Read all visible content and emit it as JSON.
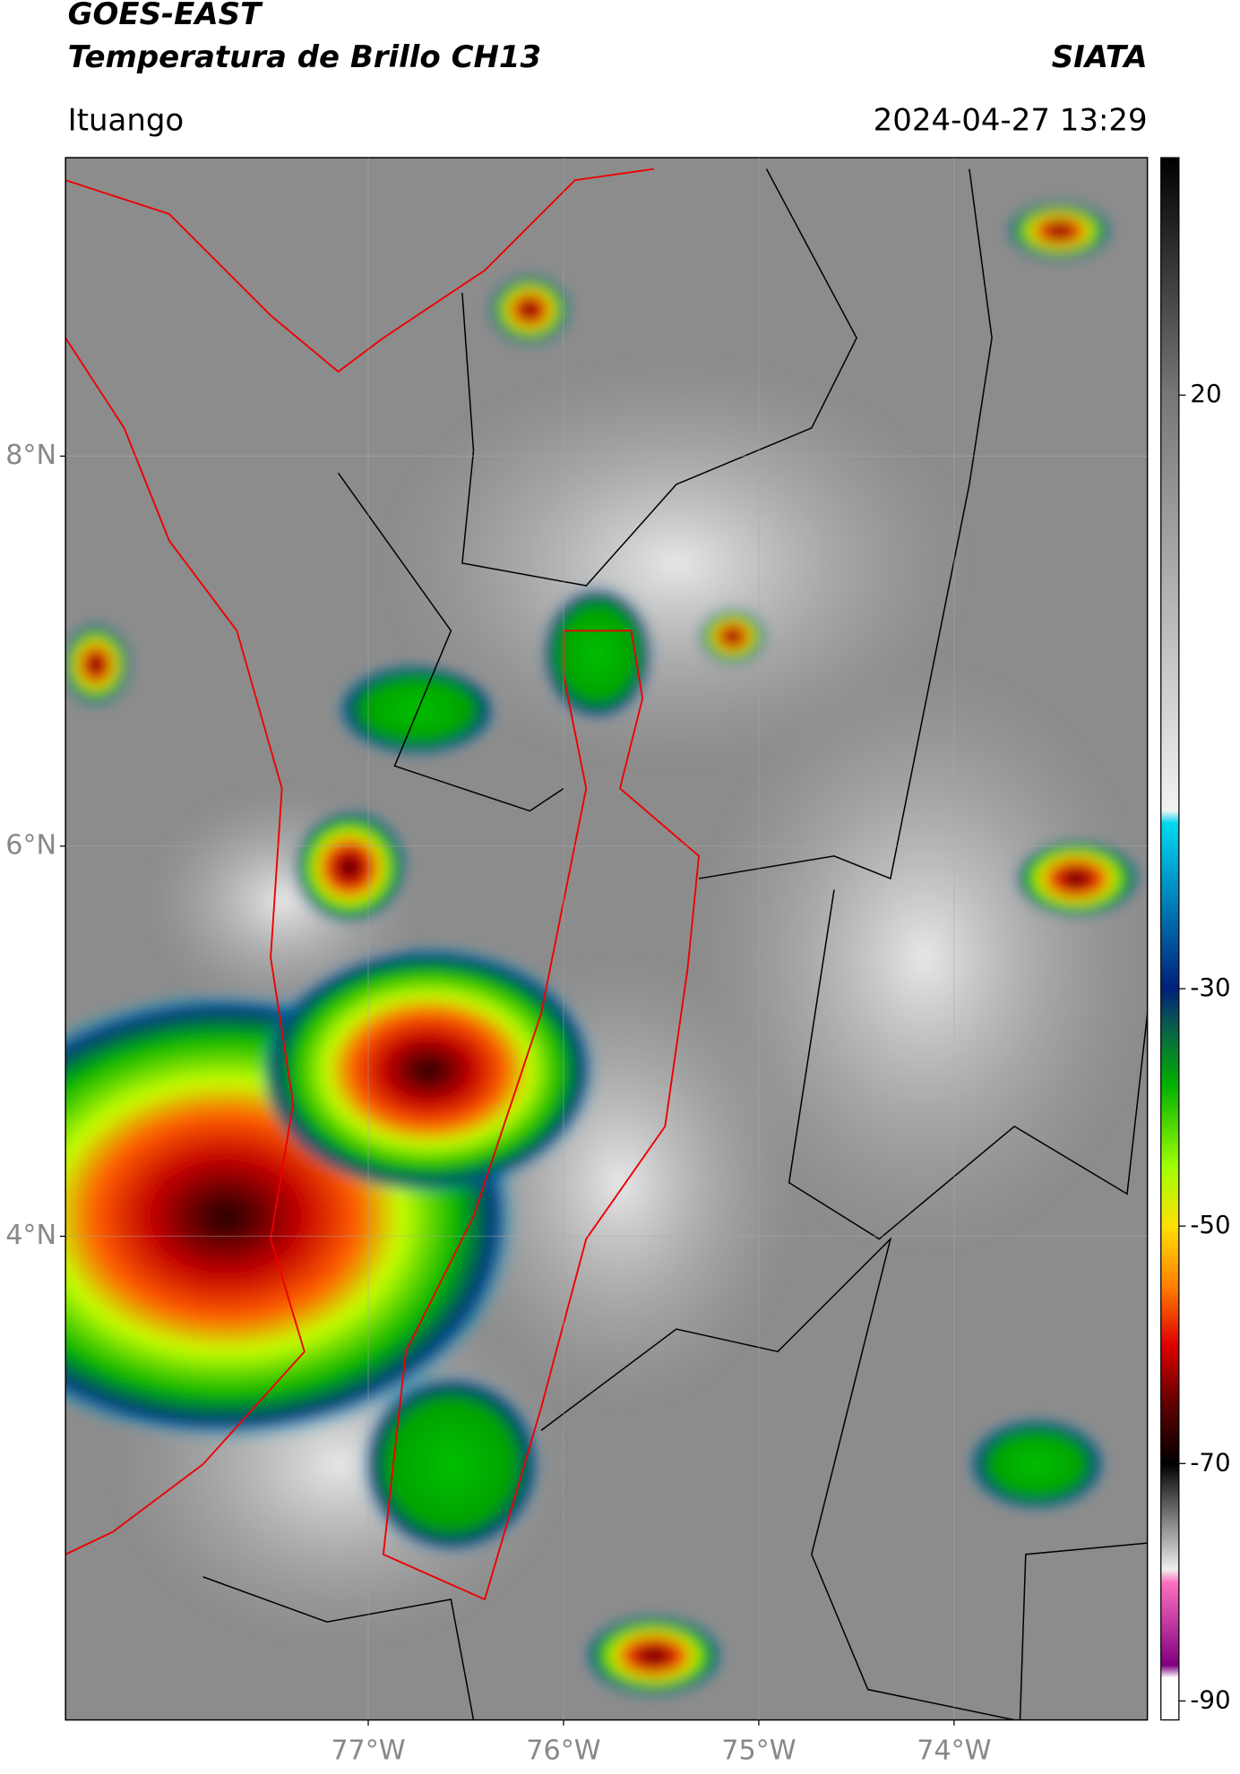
{
  "header": {
    "title": "GOES-EAST",
    "subtitle": "Temperatura de Brillo CH13",
    "brand": "SIATA",
    "location": "Ituango",
    "datetime": "2024-04-27 13:29"
  },
  "map": {
    "xlim": [
      -78.55,
      -73.01
    ],
    "ylim": [
      1.52,
      9.53
    ],
    "xticks": [
      {
        "value": -77,
        "label": "77°W"
      },
      {
        "value": -76,
        "label": "76°W"
      },
      {
        "value": -75,
        "label": "75°W"
      },
      {
        "value": -74,
        "label": "74°W"
      }
    ],
    "yticks": [
      {
        "value": 8,
        "label": "8°N"
      },
      {
        "value": 6,
        "label": "6°N"
      },
      {
        "value": 4,
        "label": "4°N"
      }
    ]
  },
  "colorbar": {
    "lim": [
      -91.6,
      40
    ],
    "ticks": [
      20,
      -30,
      -50,
      -70,
      -90
    ]
  }
}
